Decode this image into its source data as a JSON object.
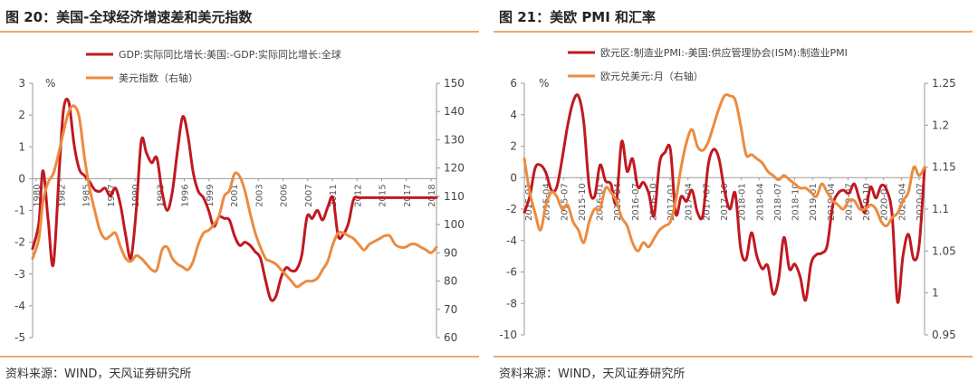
{
  "charts": [
    {
      "figure_title": "图 20：美国-全球经济增速差和美元指数",
      "source": "资料来源：WIND，天风证券研究所",
      "unit_label": "%",
      "legend_right_suffix": "（右轴）"
    },
    {
      "figure_title": "图 21：美欧 PMI 和汇率",
      "source": "资料来源：WIND，天风证券研究所",
      "unit_label": "%",
      "legend_right_suffix": "（右轴）"
    }
  ],
  "colors": {
    "red": "#c01920",
    "orange": "#ec8b3f",
    "axis": "#9a9a9a",
    "rule": "#f0a76e"
  },
  "chart_data": [
    {
      "type": "line",
      "title": "图 20：美国-全球经济增速差和美元指数",
      "x_tick_labels": [
        "1980",
        "1982",
        "1985",
        "1987",
        "1990",
        "1993",
        "1996",
        "1999",
        "2001",
        "2003",
        "2006",
        "2007",
        "2011",
        "2012",
        "2015",
        "2017",
        "2018"
      ],
      "ylim_left": [
        -5,
        3
      ],
      "yticks_left": [
        3,
        2,
        1,
        0,
        -1,
        -2,
        -3,
        -4,
        -5
      ],
      "ylim_right": [
        60,
        150
      ],
      "yticks_right": [
        150,
        140,
        130,
        120,
        110,
        100,
        90,
        80,
        70,
        60
      ],
      "legend_position": "top",
      "series": [
        {
          "name": "GDP:实际同比增长:美国:-GDP:实际同比增长:全球",
          "axis": "left",
          "x": [
            1980,
            1980.6,
            1981,
            1981.5,
            1982,
            1982.6,
            1983,
            1983.5,
            1984,
            1984.5,
            1985,
            1985.5,
            1986,
            1986.5,
            1987,
            1987.5,
            1988,
            1988.5,
            1989,
            1989.5,
            1990,
            1990.5,
            1991,
            1991.5,
            1992,
            1992.5,
            1993,
            1993.5,
            1994,
            1994.5,
            1995,
            1995.5,
            1996,
            1996.5,
            1997,
            1997.5,
            1998,
            1998.5,
            1999,
            1999.5,
            2000,
            2000.5,
            2001,
            2001.5,
            2002,
            2002.5,
            2003,
            2003.5,
            2004,
            2004.5,
            2005,
            2005.5,
            2006,
            2006.5,
            2007,
            2007.5,
            2008,
            2008.5,
            2009,
            2009.5,
            2010,
            2010.5,
            2011,
            2011.5,
            2012,
            2012.5,
            2013,
            2013.5,
            2014,
            2014.5,
            2015,
            2015.5,
            2016,
            2016.5,
            2017,
            2017.5,
            2018,
            2018.5,
            2019
          ],
          "values": [
            -2.2,
            -1.4,
            0.25,
            -1.3,
            -2.7,
            0.4,
            2.2,
            2.4,
            1.1,
            0.3,
            0.1,
            -0.1,
            -0.35,
            -0.4,
            -0.3,
            -0.55,
            -0.3,
            -0.85,
            -1.8,
            -2.5,
            -1.0,
            1.2,
            0.8,
            0.5,
            0.65,
            -0.4,
            -1.0,
            -0.4,
            0.9,
            1.95,
            1.35,
            0.2,
            -0.4,
            -0.6,
            -1.0,
            -1.5,
            -1.2,
            -1.25,
            -1.3,
            -1.8,
            -2.1,
            -2.0,
            -2.1,
            -2.3,
            -2.5,
            -3.2,
            -3.8,
            -3.7,
            -3.1,
            -2.8,
            -2.9,
            -2.85,
            -2.4,
            -1.2,
            -1.25,
            -1.0,
            -1.3,
            -0.9,
            -0.6,
            -1.8,
            -1.75,
            -1.4,
            -0.65,
            -0.6,
            -0.6,
            -0.6,
            -0.6,
            -0.6,
            -0.6,
            -0.6,
            -0.6,
            -0.6,
            -0.6,
            -0.6,
            -0.6,
            -0.6,
            -0.6,
            -0.6,
            -0.6
          ]
        },
        {
          "name": "美元指数（右轴）",
          "axis": "right",
          "x": [
            1980,
            1980.6,
            1981,
            1981.5,
            1982,
            1982.5,
            1983,
            1983.5,
            1984,
            1984.5,
            1985,
            1985.5,
            1986,
            1986.5,
            1987,
            1987.5,
            1988,
            1988.5,
            1989,
            1989.5,
            1990,
            1990.5,
            1991,
            1991.5,
            1992,
            1992.5,
            1993,
            1993.5,
            1994,
            1994.5,
            1995,
            1995.5,
            1996,
            1996.5,
            1997,
            1997.5,
            1998,
            1998.5,
            1999,
            1999.5,
            2000,
            2000.5,
            2001,
            2001.5,
            2002,
            2002.5,
            2003,
            2003.5,
            2004,
            2004.5,
            2005,
            2005.5,
            2006,
            2006.5,
            2007,
            2007.5,
            2008,
            2008.5,
            2009,
            2009.5,
            2010,
            2010.5,
            2011,
            2011.5,
            2012,
            2012.5,
            2013,
            2013.5,
            2014,
            2014.5,
            2015,
            2015.5,
            2016,
            2016.5,
            2017,
            2017.5,
            2018,
            2018.5,
            2019
          ],
          "values": [
            88,
            95,
            108,
            115,
            118,
            125,
            133,
            140,
            142,
            138,
            124,
            113,
            105,
            98,
            95,
            96,
            97,
            92,
            88,
            87,
            89,
            88,
            86,
            84,
            84,
            91,
            92,
            88,
            86,
            85,
            84,
            87,
            93,
            97,
            98,
            100,
            103,
            110,
            112,
            118,
            117,
            112,
            104,
            97,
            92,
            88,
            87,
            86,
            84,
            82,
            80,
            78,
            79,
            80,
            80,
            81,
            84,
            87,
            93,
            97,
            97,
            96,
            95,
            93,
            91,
            93,
            94,
            95,
            96,
            96,
            93,
            92,
            92,
            93,
            93,
            92,
            91,
            90,
            92
          ]
        }
      ]
    },
    {
      "type": "line",
      "title": "图 21：美欧 PMI 和汇率",
      "x_tick_labels": [
        "2015-01",
        "2015-04",
        "2015-07",
        "2015-10",
        "2016-01",
        "2016-04",
        "2016-07",
        "2016-10",
        "2017-01",
        "2017-04",
        "2017-07",
        "2017-10",
        "2018-01",
        "2018-04",
        "2018-07",
        "2018-10",
        "2019-01",
        "2019-04",
        "2019-07",
        "2019-10",
        "2020-01",
        "2020-04",
        "2020-07"
      ],
      "ylim_left": [
        -10,
        6
      ],
      "yticks_left": [
        6,
        4,
        2,
        0,
        -2,
        -4,
        -6,
        -8,
        -10
      ],
      "ylim_right": [
        0.95,
        1.25
      ],
      "yticks_right": [
        1.25,
        1.2,
        1.15,
        1.1,
        1.05,
        1,
        0.95
      ],
      "legend_position": "top",
      "series": [
        {
          "name": "欧元区:制造业PMI:-美国:供应管理协会(ISM):制造业PMI",
          "axis": "left",
          "values": [
            -2.2,
            -1.2,
            0.6,
            0.8,
            0.3,
            -0.8,
            -0.6,
            1.2,
            3.3,
            4.8,
            5.2,
            3.5,
            -0.6,
            -1.2,
            0.8,
            -0.2,
            -0.4,
            -1.6,
            2.3,
            0.4,
            1.2,
            -0.6,
            -0.3,
            -1.0,
            -2.4,
            0.9,
            1.6,
            1.8,
            -2.3,
            -1.2,
            -1.5,
            -0.8,
            -2.2,
            -2.4,
            0.8,
            1.8,
            1.2,
            -0.8,
            -2.0,
            -1.0,
            -4.5,
            -5.2,
            -3.5,
            -5.0,
            -5.8,
            -5.6,
            -7.4,
            -6.5,
            -3.8,
            -5.8,
            -5.5,
            -6.3,
            -7.8,
            -5.5,
            -4.9,
            -4.8,
            -4.3,
            -1.8,
            -1.0,
            -0.8,
            -1.0,
            -0.4,
            -1.4,
            -2.2,
            -0.6,
            -1.3,
            -0.5,
            -0.8,
            -2.4,
            -7.9,
            -5.0,
            -3.6,
            -5.2,
            -4.3,
            0.6
          ],
          "x_start": "2015-01",
          "x_end": "2020-07"
        },
        {
          "name": "欧元兑美元:月（右轴）",
          "axis": "right",
          "values": [
            1.16,
            1.12,
            1.095,
            1.075,
            1.105,
            1.12,
            1.115,
            1.1,
            1.105,
            1.085,
            1.075,
            1.06,
            1.085,
            1.1,
            1.1,
            1.125,
            1.12,
            1.11,
            1.09,
            1.08,
            1.06,
            1.05,
            1.06,
            1.055,
            1.065,
            1.075,
            1.08,
            1.085,
            1.11,
            1.15,
            1.18,
            1.195,
            1.175,
            1.17,
            1.18,
            1.2,
            1.22,
            1.235,
            1.235,
            1.23,
            1.2,
            1.165,
            1.165,
            1.16,
            1.155,
            1.145,
            1.14,
            1.135,
            1.14,
            1.135,
            1.13,
            1.125,
            1.125,
            1.12,
            1.115,
            1.13,
            1.12,
            1.11,
            1.105,
            1.1,
            1.11,
            1.11,
            1.1,
            1.1,
            1.105,
            1.1,
            1.085,
            1.08,
            1.09,
            1.095,
            1.11,
            1.12,
            1.15,
            1.14,
            1.15
          ],
          "x_start": "2015-01",
          "x_end": "2020-07"
        }
      ]
    }
  ]
}
